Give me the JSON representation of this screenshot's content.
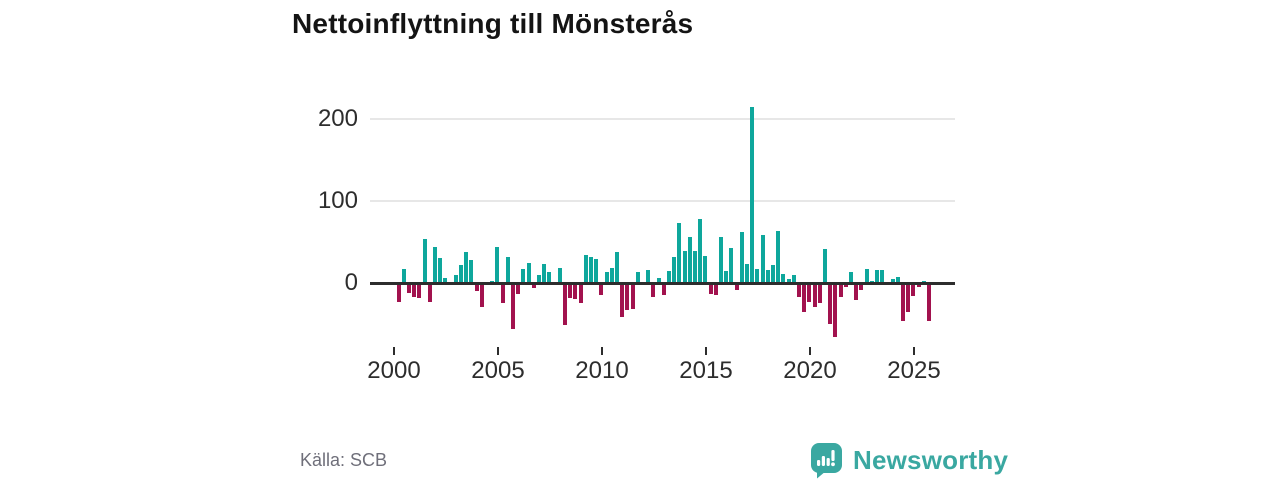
{
  "title": "Nettoinflyttning till Mönsterås",
  "source": "Källa: SCB",
  "branding": {
    "logo_text": "Newsworthy",
    "logo_icon": "newsworthy-speech-bubble-bar-chart-icon",
    "logo_color": "#3aa8a1"
  },
  "colors": {
    "positive": "#0ea79c",
    "negative": "#a2124e",
    "grid": "#e7e7e7",
    "axis_line": "#2d2d2d",
    "text": "#2d2d2d",
    "muted_text": "#6f6f7a"
  },
  "chart_data": {
    "type": "bar",
    "title": "Nettoinflyttning till Mönsterås",
    "xlabel": "",
    "ylabel": "",
    "ylim": [
      -75,
      229
    ],
    "grid": "horizontal",
    "legend": "none",
    "frequency": "quarterly",
    "start_period": "2000 Q1",
    "end_period": "2025 Q3",
    "y_ticks": [
      {
        "label": "200",
        "value": 200
      },
      {
        "label": "100",
        "value": 100
      },
      {
        "label": "0",
        "value": 0
      }
    ],
    "x_ticks": [
      {
        "label": "2000"
      },
      {
        "label": "2005"
      },
      {
        "label": "2010"
      },
      {
        "label": "2015"
      },
      {
        "label": "2020"
      },
      {
        "label": "2025"
      }
    ],
    "values": [
      -23,
      18,
      -11,
      -16,
      -17,
      54,
      -22,
      44,
      31,
      7,
      0,
      10,
      22,
      38,
      29,
      -9,
      -29,
      2,
      3,
      45,
      -24,
      32,
      -55,
      -13,
      18,
      25,
      -6,
      11,
      24,
      14,
      0,
      19,
      -51,
      -17,
      -19,
      -24,
      35,
      32,
      30,
      -14,
      14,
      19,
      38,
      -41,
      -32,
      -31,
      14,
      -2,
      16,
      -16,
      7,
      -14,
      15,
      32,
      74,
      40,
      56,
      40,
      78,
      33,
      -13,
      -14,
      57,
      15,
      43,
      -8,
      63,
      24,
      215,
      18,
      59,
      17,
      22,
      64,
      12,
      6,
      10,
      -16,
      -35,
      -22,
      -28,
      -24,
      42,
      -49,
      -65,
      -16,
      -4,
      14,
      -20,
      -8,
      18,
      3,
      17,
      16,
      0,
      5,
      8,
      -45,
      -34,
      -15,
      -4,
      3,
      -46
    ]
  }
}
